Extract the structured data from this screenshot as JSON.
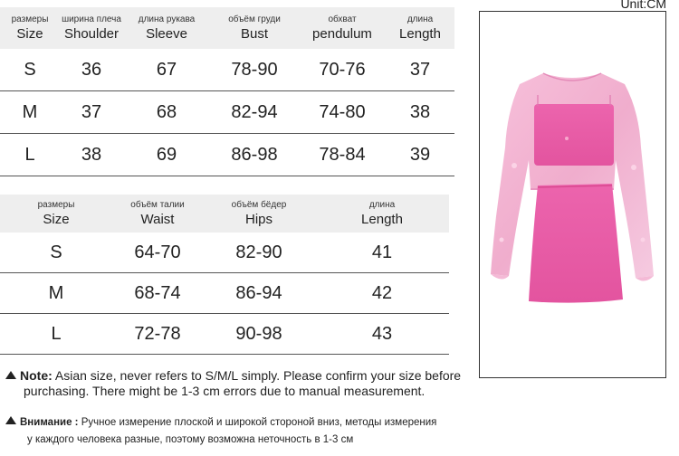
{
  "unit": "Unit:CM",
  "top_table": {
    "headers": [
      {
        "ru": "размеры",
        "en": "Size"
      },
      {
        "ru": "ширина плеча",
        "en": "Shoulder"
      },
      {
        "ru": "длина рукава",
        "en": "Sleeve"
      },
      {
        "ru": "объём груди",
        "en": "Bust"
      },
      {
        "ru": "обхват",
        "en": "pendulum"
      },
      {
        "ru": "длина",
        "en": "Length"
      }
    ],
    "rows": [
      [
        "S",
        "36",
        "67",
        "78-90",
        "70-76",
        "37"
      ],
      [
        "M",
        "37",
        "68",
        "82-94",
        "74-80",
        "38"
      ],
      [
        "L",
        "38",
        "69",
        "86-98",
        "78-84",
        "39"
      ]
    ]
  },
  "bottom_table": {
    "headers": [
      {
        "ru": "размеры",
        "en": "Size"
      },
      {
        "ru": "объём талии",
        "en": "Waist"
      },
      {
        "ru": "объём бёдер",
        "en": "Hips"
      },
      {
        "ru": "длина",
        "en": "Length"
      }
    ],
    "rows": [
      [
        "S",
        "64-70",
        "82-90",
        "41"
      ],
      [
        "M",
        "68-74",
        "86-94",
        "42"
      ],
      [
        "L",
        "72-78",
        "90-98",
        "43"
      ]
    ]
  },
  "note_en": {
    "label": "Note:",
    "line1": " Asian size, never refers to S/M/L simply. Please confirm your size before",
    "line2": "purchasing. There might be 1-3 cm errors due to manual measurement."
  },
  "note_ru": {
    "label": "Внимание :",
    "line1": " Ручное измерение плоской и широкой стороной вниз, методы измерения",
    "line2": "у каждого человека разные, поэтому возможна неточность в 1-3 см"
  },
  "colors": {
    "header_bg": "#eeeeee",
    "product_pink": "#e85aa6"
  }
}
